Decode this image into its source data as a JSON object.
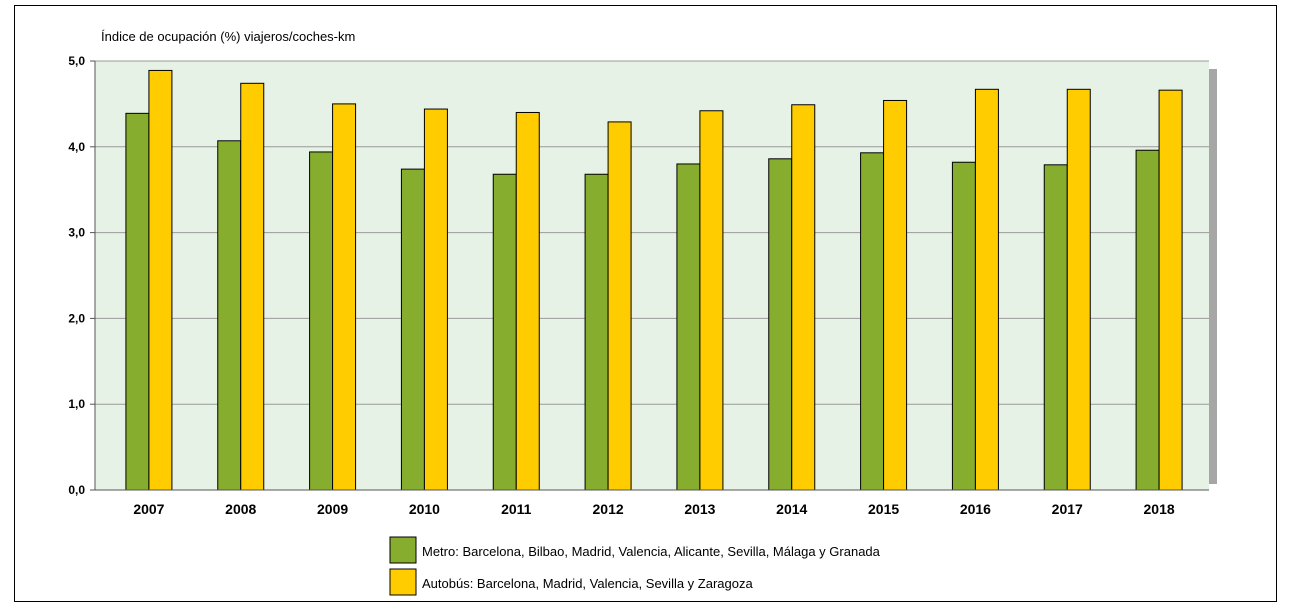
{
  "chart_data": {
    "type": "bar",
    "ylabel": "Índice de ocupación (%) viajeros/coches-km",
    "categories": [
      "2007",
      "2008",
      "2009",
      "2010",
      "2011",
      "2012",
      "2013",
      "2014",
      "2015",
      "2016",
      "2017",
      "2018"
    ],
    "series": [
      {
        "name": "Metro: Barcelona, Bilbao, Madrid, Valencia, Alicante, Sevilla, Málaga y Granada",
        "color": "#86ad2e",
        "values": [
          4.39,
          4.07,
          3.94,
          3.74,
          3.68,
          3.68,
          3.8,
          3.86,
          3.93,
          3.82,
          3.79,
          3.96
        ]
      },
      {
        "name": "Autobús: Barcelona, Madrid, Valencia, Sevilla y Zaragoza",
        "color": "#ffcc00",
        "values": [
          4.89,
          4.74,
          4.5,
          4.44,
          4.4,
          4.29,
          4.42,
          4.49,
          4.54,
          4.67,
          4.67,
          4.66
        ]
      }
    ],
    "ylim": [
      0,
      5
    ],
    "yticks": [
      "0,0",
      "1,0",
      "2,0",
      "3,0",
      "4,0",
      "5,0"
    ],
    "grid": true,
    "plot_background": "#e6f2e6",
    "legend_position": "bottom"
  }
}
